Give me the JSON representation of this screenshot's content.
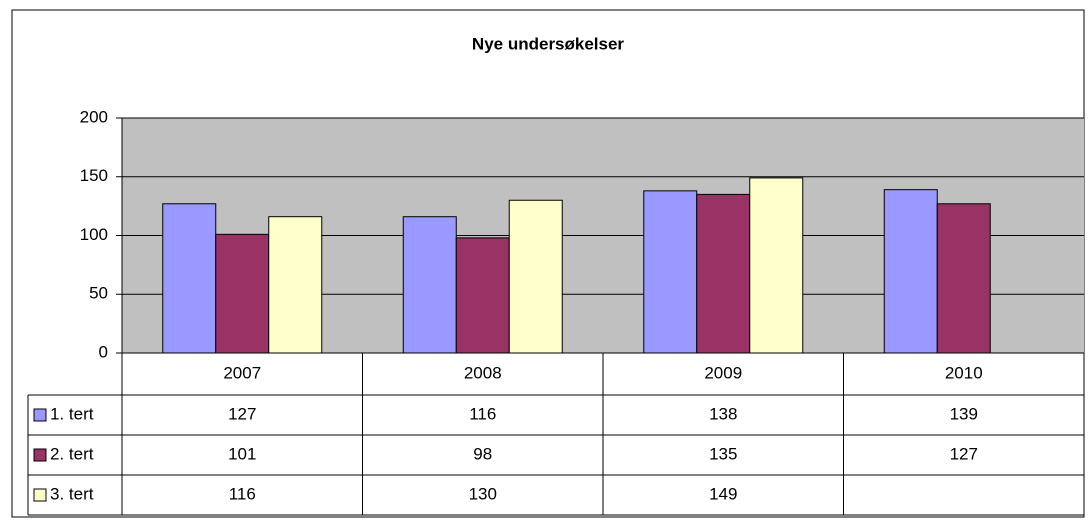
{
  "chart_data": {
    "type": "bar",
    "title": "Nye undersøkelser",
    "categories": [
      "2007",
      "2008",
      "2009",
      "2010"
    ],
    "series": [
      {
        "name": "1. tert",
        "color": "#9999ff",
        "values": [
          127,
          116,
          138,
          139
        ]
      },
      {
        "name": "2. tert",
        "color": "#993366",
        "values": [
          101,
          98,
          135,
          127
        ]
      },
      {
        "name": "3. tert",
        "color": "#ffffcc",
        "values": [
          116,
          130,
          149,
          null
        ]
      }
    ],
    "ylim": [
      0,
      200
    ],
    "yticks": [
      0,
      50,
      100,
      150,
      200
    ],
    "grid": true
  }
}
